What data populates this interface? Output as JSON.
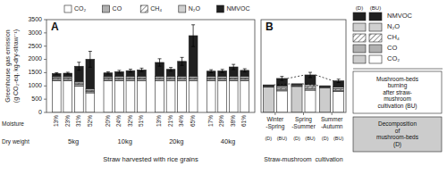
{
  "chart_data": [
    {
      "type": "bar",
      "stacked": true,
      "title": "A",
      "ylabel": "Greenhouse gas emission\n(g CO₂-eq. kg-dry-straw⁻¹)",
      "xlabel": "Straw harvested with rice grains",
      "row_labels": [
        "Moisture",
        "Dry weight"
      ],
      "groups": [
        {
          "label": "5kg",
          "categories": [
            "13%",
            "23%",
            "31%",
            "52%"
          ]
        },
        {
          "label": "10kg",
          "categories": [
            "20%",
            "24%",
            "32%",
            "51%"
          ]
        },
        {
          "label": "20kg",
          "categories": [
            "13%",
            "21%",
            "34%",
            "65%"
          ]
        },
        {
          "label": "40kg",
          "categories": [
            "17%",
            "29%",
            "38%",
            "61%"
          ]
        }
      ],
      "series": [
        {
          "name": "CO₂",
          "color": "#ffffff",
          "values": [
            1190,
            1190,
            1000,
            740,
            1190,
            1190,
            1190,
            1190,
            1190,
            1190,
            1190,
            1190,
            1190,
            1190,
            1190,
            1190
          ]
        },
        {
          "name": "CO",
          "color": "#b0b0b0",
          "values": [
            60,
            60,
            58,
            50,
            60,
            62,
            65,
            65,
            65,
            65,
            65,
            65,
            62,
            62,
            62,
            62
          ]
        },
        {
          "name": "CH₄",
          "color": "#ffffff",
          "marker": "hatch",
          "values": [
            48,
            50,
            52,
            48,
            50,
            52,
            55,
            55,
            55,
            55,
            55,
            55,
            52,
            52,
            52,
            52
          ]
        },
        {
          "name": "N₂O",
          "color": "#d0d0d0",
          "values": [
            50,
            50,
            52,
            48,
            50,
            52,
            55,
            55,
            55,
            55,
            55,
            55,
            52,
            52,
            52,
            52
          ]
        },
        {
          "name": "NMVOC",
          "color": "#202020",
          "values": [
            120,
            130,
            580,
            1120,
            140,
            180,
            210,
            240,
            520,
            260,
            560,
            1530,
            200,
            210,
            360,
            230
          ],
          "errors": [
            30,
            35,
            150,
            300,
            40,
            50,
            55,
            65,
            140,
            70,
            150,
            410,
            55,
            57,
            97,
            62
          ]
        }
      ],
      "ylim": [
        0,
        3500
      ],
      "yticks": [
        0,
        500,
        1000,
        1500,
        2000,
        2500,
        3000,
        3500
      ],
      "legend": "top"
    },
    {
      "type": "bar",
      "stacked": true,
      "title": "B",
      "xlabel": "Straw-mushroom  cultivation",
      "groups": [
        {
          "label": "Winter\n-Spring",
          "categories": [
            "(D)",
            "(BU)"
          ]
        },
        {
          "label": "Spring\n-Summer",
          "categories": [
            "(D)",
            "(BU)"
          ]
        },
        {
          "label": "Summer\n-Autumn",
          "categories": [
            "(D)",
            "(BU)"
          ]
        }
      ],
      "series": [
        {
          "name": "CO₂",
          "colors": [
            "#cccccc",
            "#ffffff",
            "#cccccc",
            "#ffffff",
            "#cccccc",
            "#ffffff"
          ],
          "values": [
            680,
            580,
            700,
            600,
            660,
            560
          ]
        },
        {
          "name": "CO",
          "color": "#b0b0b0",
          "values": [
            14,
            45,
            16,
            50,
            13,
            40
          ]
        },
        {
          "name": "CH₄",
          "color": "#ffffff",
          "marker": "hatch",
          "values": [
            16,
            45,
            18,
            50,
            15,
            40
          ]
        },
        {
          "name": "N₂O",
          "color": "#d0d0d0",
          "values": [
            14,
            45,
            16,
            50,
            13,
            40
          ]
        },
        {
          "name": "NMVOC",
          "color": "#202020",
          "values": [
            18,
            200,
            22,
            260,
            17,
            170
          ],
          "errors": [
            null,
            55,
            null,
            70,
            null,
            46
          ]
        }
      ],
      "ylim": [
        0,
        2500
      ],
      "tick_labels": "x",
      "legend": "right",
      "legend_columns": [
        "(D)",
        "(BU)"
      ],
      "annotations": [
        {
          "text": "Mushroom-beds\nburning\nafter straw-\nmushroom\ncultivation (BU)",
          "color": "#ffffff"
        },
        {
          "text": "Decomposition\nof\nmushroom-beds\n(D)",
          "color": "#cccccc"
        }
      ]
    }
  ]
}
